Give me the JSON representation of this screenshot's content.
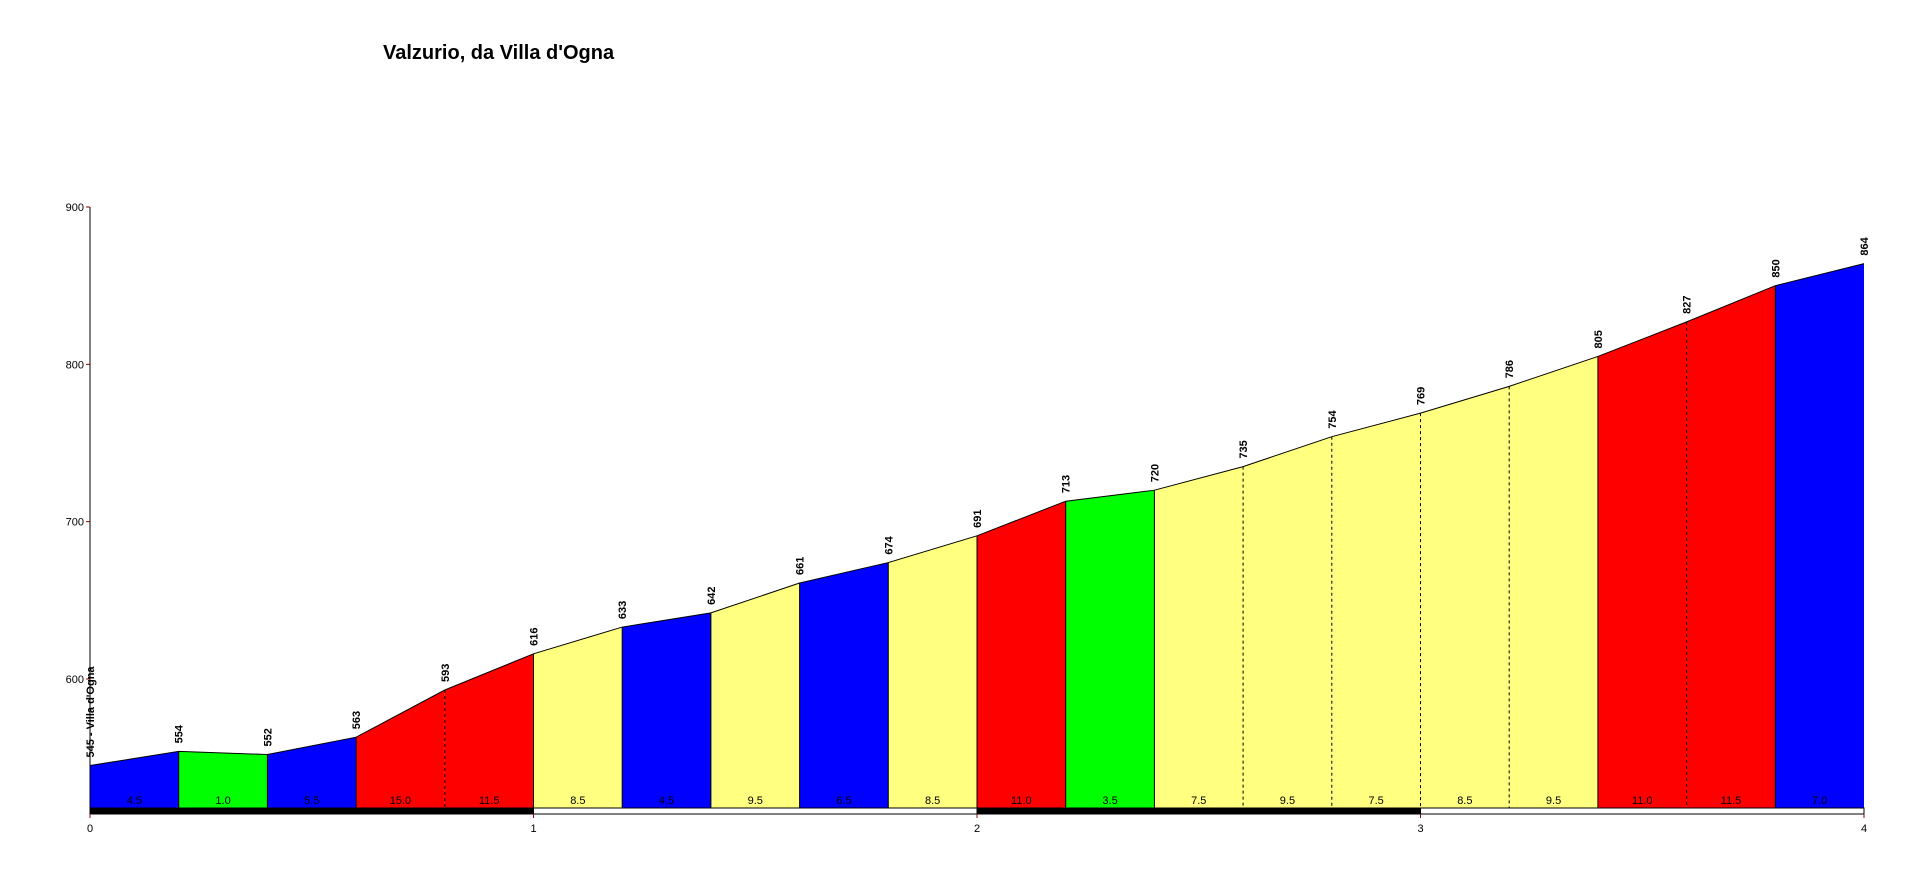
{
  "chart_data": {
    "type": "area",
    "title": "Valzurio, da Villa d'Ogna",
    "xlabel": "",
    "ylabel": "",
    "xlim": [
      0,
      4
    ],
    "ylim": [
      518,
      900
    ],
    "x_ticks": [
      "0",
      "1",
      "2",
      "3",
      "4"
    ],
    "y_ticks": [
      "600",
      "700",
      "800",
      "900"
    ],
    "x_km": [
      0,
      0.2,
      0.4,
      0.6,
      0.8,
      1.0,
      1.2,
      1.4,
      1.6,
      1.8,
      2.0,
      2.2,
      2.4,
      2.6,
      2.8,
      3.0,
      3.2,
      3.4,
      3.6,
      3.8,
      4.0
    ],
    "elevation_m": [
      545,
      554,
      552,
      563,
      593,
      616,
      633,
      642,
      661,
      674,
      691,
      713,
      720,
      735,
      754,
      769,
      786,
      805,
      827,
      850,
      864
    ],
    "point_labels": [
      "545 - Villa d'Ogna",
      "554",
      "552",
      "563",
      "593",
      "616",
      "633",
      "642",
      "661",
      "674",
      "691",
      "713",
      "720",
      "735",
      "754",
      "769",
      "786",
      "805",
      "827",
      "850",
      "864"
    ],
    "gradient_pct": [
      "4.5",
      "1.0",
      "5.5",
      "15.0",
      "11.5",
      "8.5",
      "4.5",
      "9.5",
      "6.5",
      "8.5",
      "11.0",
      "3.5",
      "7.5",
      "9.5",
      "7.5",
      "8.5",
      "9.5",
      "11.0",
      "11.5",
      "7.0"
    ],
    "segment_colors": [
      "#0000ff",
      "#00ff00",
      "#0000ff",
      "#ff0000",
      "#ff0000",
      "#ffff80",
      "#0000ff",
      "#ffff80",
      "#0000ff",
      "#ffff80",
      "#ff0000",
      "#00ff00",
      "#ffff80",
      "#ffff80",
      "#ffff80",
      "#ffff80",
      "#ffff80",
      "#ff0000",
      "#ff0000",
      "#0000ff"
    ],
    "colors": {
      "axis": "#000000",
      "axis_tick_mark": "#8b0000"
    }
  }
}
